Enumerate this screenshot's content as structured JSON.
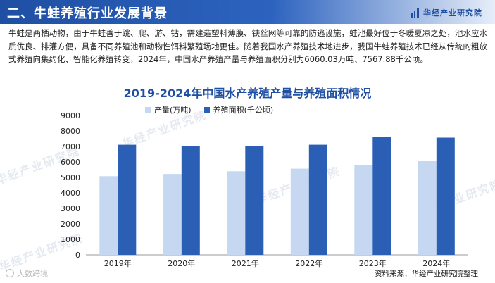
{
  "header": {
    "section_title": "二、牛蛙养殖行业发展背景",
    "brand": "华经产业研究院"
  },
  "intro": "牛蛙是两栖动物，由于牛蛙善于跳、爬、游、钻，需建造塑料薄膜、铁丝网等可靠的防逃设施，蛙池最好位于冬暖夏凉之处，池水应水质优良、排灌方便，具备不同养殖池和动物性饵料繁殖场地更佳。随着我国水产养殖技术地进步，我国牛蛙养殖技术已经从传统的粗放式养殖向集约化、智能化养殖转变，2024年，中国水产养殖产量与养殖面积分别为6060.03万吨、7567.88千公顷。",
  "watermarks": [
    "华经产业研究院",
    "华经产业研究院",
    "华经产业研究院",
    "华经产业研究院",
    "华经产业研究院"
  ],
  "footer": {
    "platform": "大数跨境",
    "source": "资料来源：华经产业研究院整理"
  },
  "colors": {
    "production": "#c6d8f1",
    "area": "#2b5fb5",
    "accent": "#1f4fa3"
  },
  "chart_data": {
    "type": "bar",
    "title": "2019-2024年中国水产养殖产量与养殖面积情况",
    "categories": [
      "2019年",
      "2020年",
      "2021年",
      "2022年",
      "2023年",
      "2024年"
    ],
    "series": [
      {
        "name": "产量(万吨)",
        "values": [
          5079,
          5224,
          5394,
          5565,
          5812,
          6060.03
        ]
      },
      {
        "name": "养殖面积(千公顷)",
        "values": [
          7108,
          7036,
          7009,
          7108,
          7600,
          7567.88
        ]
      }
    ],
    "ylim": [
      0,
      9000
    ],
    "yticks": [
      0,
      1000,
      2000,
      3000,
      4000,
      5000,
      6000,
      7000,
      8000,
      9000
    ],
    "legend": "top-left",
    "grid": false
  }
}
